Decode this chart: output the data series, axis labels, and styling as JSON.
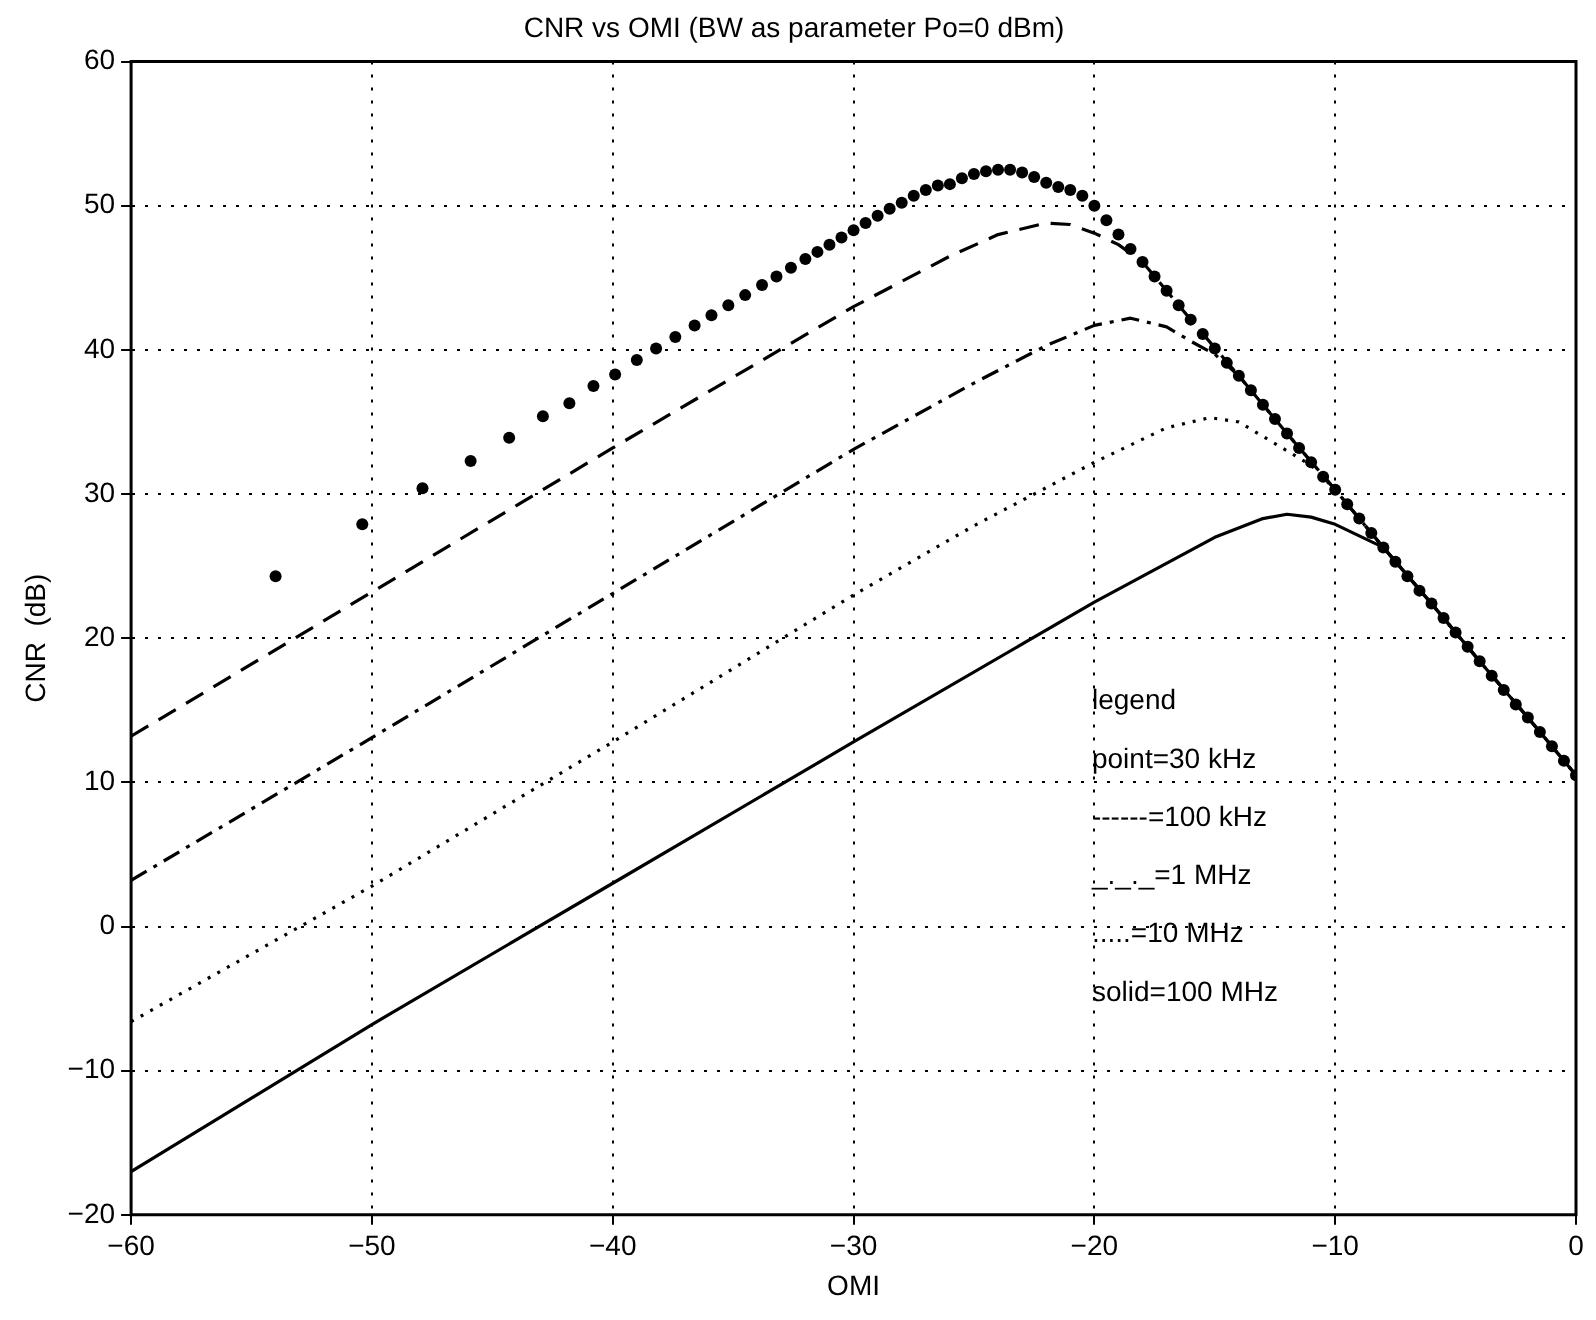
{
  "chart_data": {
    "type": "line",
    "title": "CNR vs OMI (BW as parameter Po=0 dBm)",
    "xlabel": "OMI",
    "ylabel": "CNR  (dB)",
    "xlim": [
      -60,
      0
    ],
    "xticks": [
      -60,
      -50,
      -40,
      -30,
      -20,
      -10,
      0
    ],
    "ylim": [
      -20,
      60
    ],
    "yticks": [
      -20,
      -10,
      0,
      10,
      20,
      30,
      40,
      50,
      60
    ],
    "grid": true,
    "legend": false,
    "annotations": [
      "legend",
      "point=30 kHz",
      "------=100 kHz",
      "_._._=1 MHz",
      ".....=10 MHz",
      "solid=100 MHz"
    ],
    "series": [
      {
        "type": "scatter",
        "marker": "circle",
        "color": "#000000",
        "x": [
          -54,
          -50.4,
          -47.9,
          -45.9,
          -44.3,
          -42.9,
          -41.8,
          -40.8,
          -39.9,
          -39,
          -38.2,
          -37.4,
          -36.6,
          -35.9,
          -35.2,
          -34.5,
          -33.8,
          -33.2,
          -32.6,
          -32,
          -31.5,
          -31,
          -30.5,
          -30,
          -29.5,
          -29,
          -28.5,
          -28,
          -27.5,
          -27,
          -26.5,
          -26,
          -25.5,
          -25,
          -24.5,
          -24,
          -23.5,
          -23,
          -22.5,
          -22,
          -21.5,
          -21,
          -20.5,
          -20,
          -19.5,
          -19,
          -18.5,
          -18,
          -17.5,
          -17,
          -16.5,
          -16,
          -15.5,
          -15,
          -14.5,
          -14,
          -13.5,
          -13,
          -12.5,
          -12,
          -11.5,
          -11,
          -10.5,
          -10,
          -9.5,
          -9,
          -8.5,
          -8,
          -7.5,
          -7,
          -6.5,
          -6,
          -5.5,
          -5,
          -4.5,
          -4,
          -3.5,
          -3,
          -2.5,
          -2,
          -1.5,
          -1,
          -0.5,
          0
        ],
        "values": [
          24.3,
          27.9,
          30.4,
          32.3,
          33.9,
          35.4,
          36.3,
          37.5,
          38.3,
          39.3,
          40.1,
          40.9,
          41.7,
          42.4,
          43.1,
          43.8,
          44.5,
          45.1,
          45.7,
          46.3,
          46.8,
          47.3,
          47.8,
          48.3,
          48.8,
          49.3,
          49.8,
          50.2,
          50.7,
          51.1,
          51.4,
          51.5,
          51.9,
          52.2,
          52.4,
          52.5,
          52.5,
          52.3,
          52,
          51.6,
          51.3,
          51.1,
          50.7,
          50,
          49,
          48,
          47,
          46.1,
          45.1,
          44.1,
          43.1,
          42.1,
          41.1,
          40.1,
          39.1,
          38.2,
          37.2,
          36.2,
          35.2,
          34.2,
          33.2,
          32.2,
          31.2,
          30.3,
          29.3,
          28.3,
          27.3,
          26.3,
          25.3,
          24.3,
          23.3,
          22.4,
          21.4,
          20.4,
          19.4,
          18.4,
          17.4,
          16.4,
          15.4,
          14.5,
          13.5,
          12.5,
          11.5,
          10.5
        ]
      },
      {
        "line_style": "dashed",
        "marker": "none",
        "color": "#000000",
        "x": [
          -60,
          -50,
          -40,
          -30,
          -26,
          -24,
          -22,
          -21,
          -20,
          -19,
          -18,
          -16,
          -14,
          -12,
          -10,
          -8,
          -6,
          -4,
          -2,
          0
        ],
        "values": [
          13.2,
          23.2,
          33.2,
          43,
          46.5,
          48,
          48.8,
          48.7,
          48.1,
          47.3,
          46.1,
          42.1,
          38.2,
          34.2,
          30.3,
          26.3,
          22.4,
          18.4,
          14.5,
          10.5
        ]
      },
      {
        "line_style": "dashdot",
        "marker": "none",
        "color": "#000000",
        "x": [
          -60,
          -50,
          -40,
          -30,
          -25,
          -22,
          -20,
          -18.5,
          -17,
          -16,
          -15,
          -14,
          -12,
          -10,
          -8,
          -6,
          -4,
          -2,
          0
        ],
        "values": [
          3.2,
          13.1,
          23.1,
          33.1,
          37.7,
          40.3,
          41.7,
          42.2,
          41.6,
          40.6,
          39.7,
          38.2,
          34.2,
          30.3,
          26.3,
          22.4,
          18.4,
          14.5,
          10.5
        ]
      },
      {
        "line_style": "dotted",
        "marker": "none",
        "color": "#000000",
        "x": [
          -60,
          -50,
          -40,
          -30,
          -25,
          -20,
          -17,
          -15.2,
          -14,
          -13,
          -12,
          -11,
          -10,
          -8,
          -6,
          -4,
          -2,
          0
        ],
        "values": [
          -6.6,
          2.8,
          12.8,
          23,
          27.8,
          32.2,
          34.6,
          35.3,
          35,
          34,
          33,
          32,
          30.3,
          26.3,
          22.4,
          18.4,
          14.5,
          10.5
        ]
      },
      {
        "line_style": "solid",
        "marker": "none",
        "color": "#000000",
        "x": [
          -60,
          -50,
          -40,
          -30,
          -20,
          -15,
          -13,
          -12,
          -11,
          -10,
          -9,
          -8,
          -6,
          -4,
          -2,
          0
        ],
        "values": [
          -17,
          -6.8,
          3,
          12.8,
          22.5,
          27,
          28.3,
          28.6,
          28.4,
          27.9,
          27.1,
          26.3,
          22.4,
          18.4,
          14.5,
          10.5
        ]
      }
    ]
  }
}
